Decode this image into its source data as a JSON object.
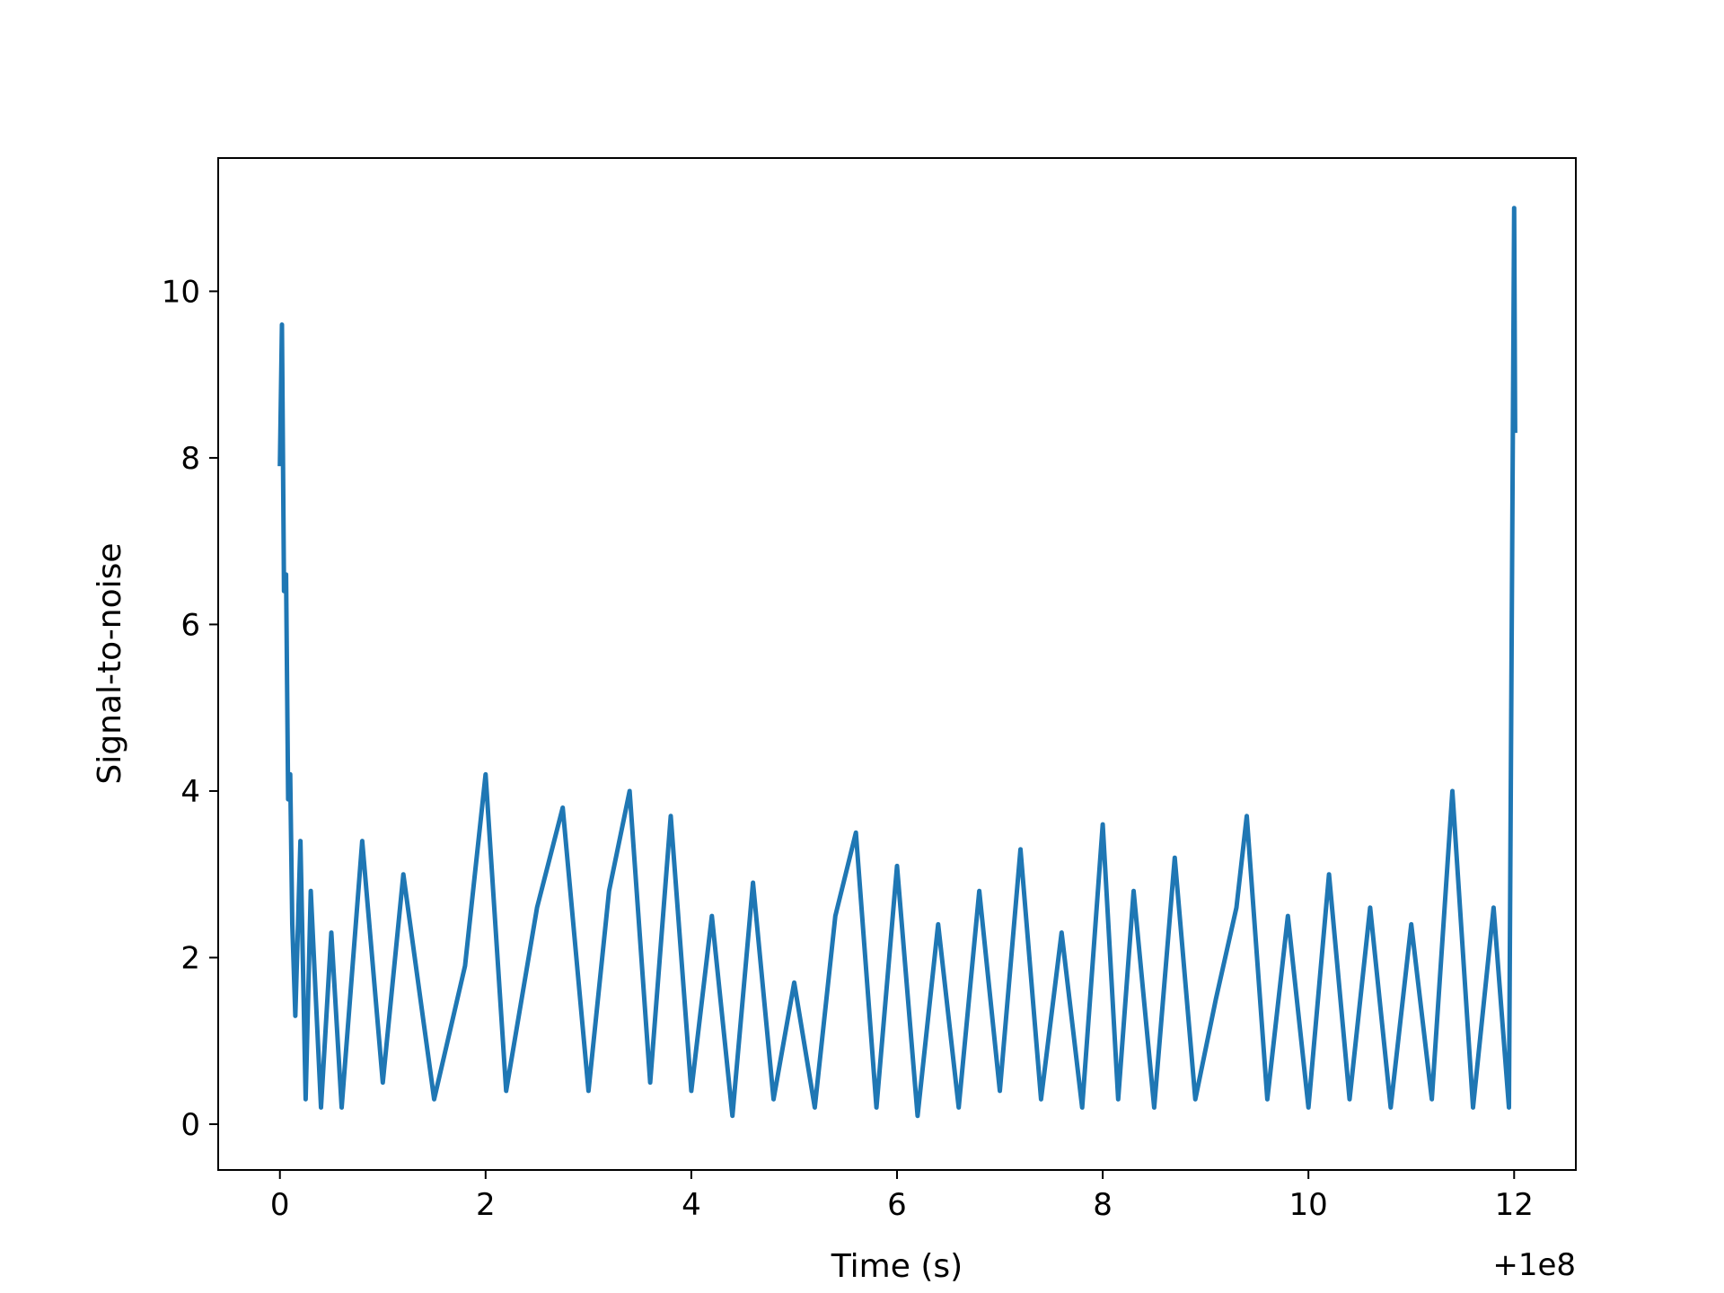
{
  "chart_data": {
    "type": "line",
    "title": "",
    "xlabel": "Time (s)",
    "ylabel": "Signal-to-noise",
    "x_offset_label": "+1e8",
    "xlim": [
      -0.6,
      12.6
    ],
    "ylim": [
      -0.55,
      11.6
    ],
    "xticks": [
      0,
      2,
      4,
      6,
      8,
      10,
      12
    ],
    "yticks": [
      0,
      2,
      4,
      6,
      8,
      10
    ],
    "grid": false,
    "legend": "none",
    "series": [
      {
        "color": "#1f77b4",
        "x": [
          0.0,
          0.02,
          0.04,
          0.06,
          0.08,
          0.1,
          0.12,
          0.15,
          0.2,
          0.25,
          0.3,
          0.4,
          0.5,
          0.6,
          0.8,
          1.0,
          1.2,
          1.5,
          1.8,
          2.0,
          2.2,
          2.5,
          2.75,
          3.0,
          3.2,
          3.4,
          3.6,
          3.8,
          4.0,
          4.2,
          4.4,
          4.6,
          4.8,
          5.0,
          5.2,
          5.4,
          5.6,
          5.8,
          6.0,
          6.2,
          6.4,
          6.6,
          6.8,
          7.0,
          7.2,
          7.4,
          7.6,
          7.8,
          8.0,
          8.15,
          8.3,
          8.5,
          8.7,
          8.9,
          9.1,
          9.3,
          9.4,
          9.6,
          9.8,
          10.0,
          10.2,
          10.4,
          10.6,
          10.8,
          11.0,
          11.2,
          11.4,
          11.6,
          11.8,
          11.95,
          12.0,
          12.01
        ],
        "y": [
          7.9,
          9.6,
          6.4,
          6.6,
          3.9,
          4.2,
          2.4,
          1.3,
          3.4,
          0.3,
          2.8,
          0.2,
          2.3,
          0.2,
          3.4,
          0.5,
          3.0,
          0.3,
          1.9,
          4.2,
          0.4,
          2.6,
          3.8,
          0.4,
          2.8,
          4.0,
          0.5,
          3.7,
          0.4,
          2.5,
          0.1,
          2.9,
          0.3,
          1.7,
          0.2,
          2.5,
          3.5,
          0.2,
          3.1,
          0.1,
          2.4,
          0.2,
          2.8,
          0.4,
          3.3,
          0.3,
          2.3,
          0.2,
          3.6,
          0.3,
          2.8,
          0.2,
          3.2,
          0.3,
          1.5,
          2.6,
          3.7,
          0.3,
          2.5,
          0.2,
          3.0,
          0.3,
          2.6,
          0.2,
          2.4,
          0.3,
          4.0,
          0.2,
          2.6,
          0.2,
          11.0,
          8.3
        ]
      }
    ]
  }
}
